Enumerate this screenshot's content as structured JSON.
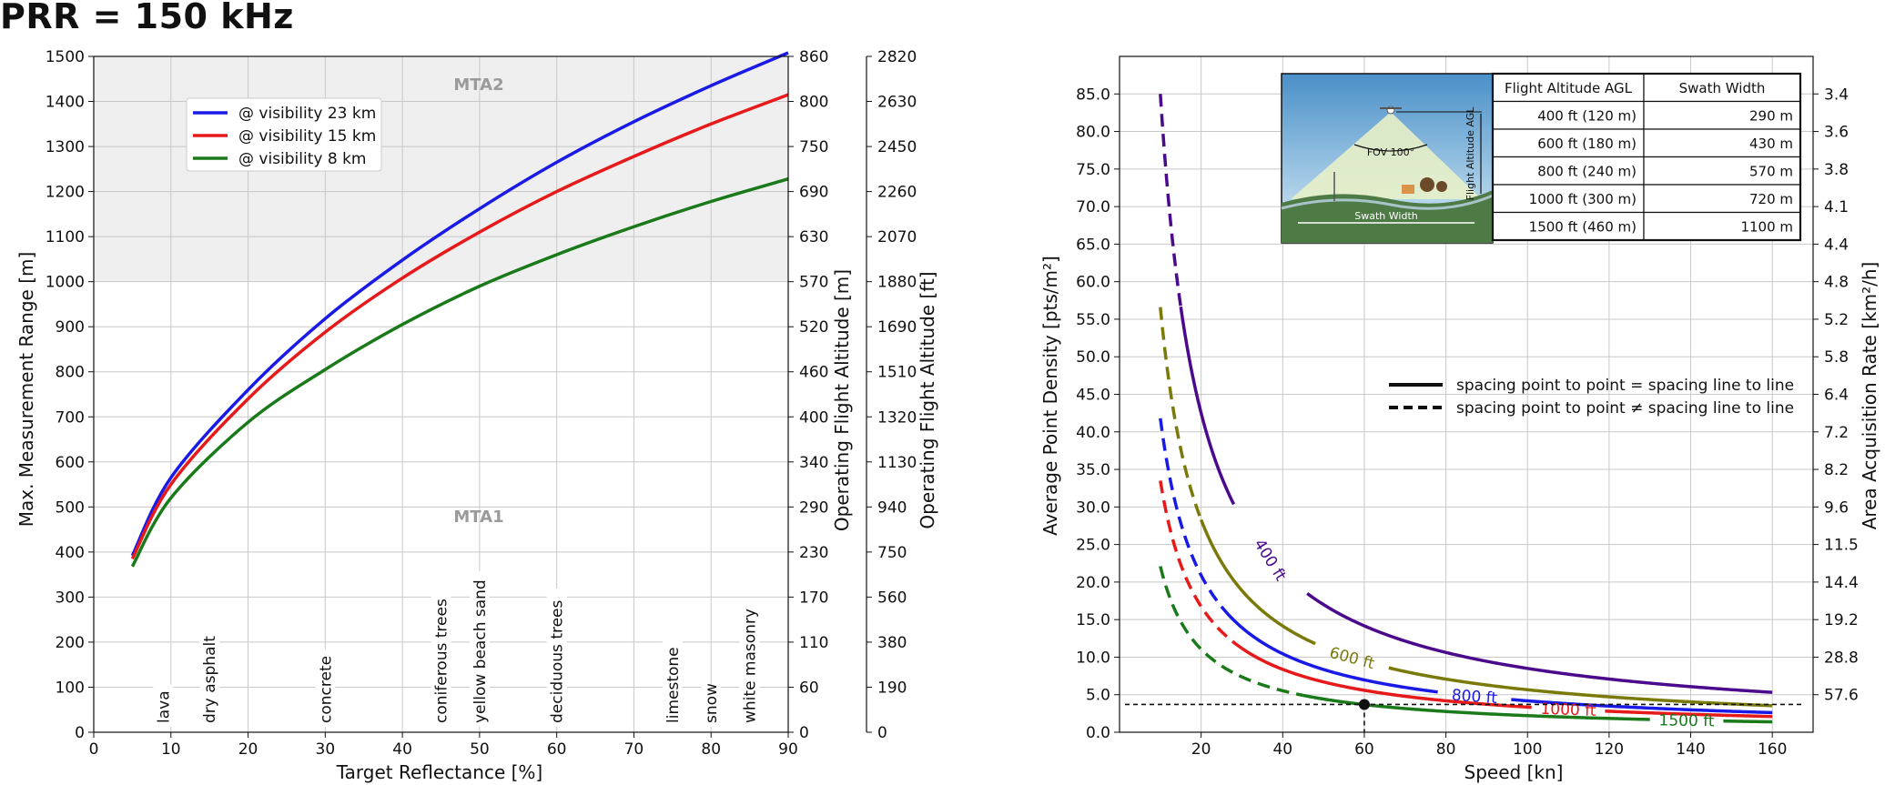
{
  "page_title": "PRR = 150 kHz",
  "chart_data": [
    {
      "type": "line",
      "xlabel": "Target Reflectance [%]",
      "ylabel": "Max. Measurement Range [m]",
      "ylabel_right1": "Operating Flight Altitude [m]",
      "ylabel_right2": "Operating Flight Altitude [ft]",
      "xlim": [
        0,
        90
      ],
      "ylim": [
        0,
        1500
      ],
      "xticks": [
        "0",
        "10",
        "20",
        "30",
        "40",
        "50",
        "60",
        "70",
        "80",
        "90"
      ],
      "yticks": [
        "0",
        "100",
        "200",
        "300",
        "400",
        "500",
        "600",
        "700",
        "800",
        "900",
        "1000",
        "1100",
        "1200",
        "1300",
        "1400",
        "1500"
      ],
      "right1_ticks": [
        "0",
        "60",
        "110",
        "170",
        "230",
        "290",
        "340",
        "400",
        "460",
        "520",
        "570",
        "630",
        "690",
        "750",
        "800",
        "860"
      ],
      "right2_ticks": [
        "0",
        "190",
        "380",
        "560",
        "750",
        "940",
        "1130",
        "1320",
        "1510",
        "1690",
        "1880",
        "2070",
        "2260",
        "2450",
        "2630",
        "2820"
      ],
      "zones": [
        {
          "label": "MTA2",
          "from": 1000,
          "to": 1500,
          "color": "#efefef"
        },
        {
          "label": "MTA1",
          "from": 0,
          "to": 1000
        }
      ],
      "series": [
        {
          "name": "@ visibility 23 km",
          "color": "#1a1ae6",
          "x": [
            5,
            10,
            20,
            30,
            40,
            50,
            60,
            70,
            80,
            90
          ],
          "values": [
            392,
            565,
            760,
            918,
            1048,
            1162,
            1265,
            1355,
            1435,
            1508
          ]
        },
        {
          "name": "@ visibility 15 km",
          "color": "#e61a1a",
          "x": [
            5,
            10,
            20,
            30,
            40,
            50,
            60,
            70,
            80,
            90
          ],
          "values": [
            385,
            550,
            740,
            888,
            1008,
            1110,
            1200,
            1278,
            1350,
            1415
          ]
        },
        {
          "name": "@ visibility 8 km",
          "color": "#1a7a1a",
          "x": [
            5,
            10,
            20,
            30,
            40,
            50,
            60,
            70,
            80,
            90
          ],
          "values": [
            368,
            520,
            688,
            805,
            905,
            990,
            1060,
            1122,
            1178,
            1228
          ]
        }
      ],
      "materials": [
        {
          "label": "lava",
          "x": 9
        },
        {
          "label": "dry asphalt",
          "x": 15
        },
        {
          "label": "concrete",
          "x": 30
        },
        {
          "label": "coniferous trees",
          "x": 45
        },
        {
          "label": "yellow beach sand",
          "x": 50
        },
        {
          "label": "deciduous trees",
          "x": 60
        },
        {
          "label": "limestone",
          "x": 75
        },
        {
          "label": "snow",
          "x": 80
        },
        {
          "label": "white masonry",
          "x": 85
        }
      ]
    },
    {
      "type": "line",
      "xlabel": "Speed [kn]",
      "ylabel": "Average Point Density [pts/m²]",
      "ylabel_right": "Area Acquisition Rate [km²/h]",
      "xlim": [
        0,
        170
      ],
      "ylim": [
        0,
        90
      ],
      "xticks": [
        "20",
        "40",
        "60",
        "80",
        "100",
        "120",
        "140",
        "160"
      ],
      "yticks": [
        "0.0",
        "5.0",
        "10.0",
        "15.0",
        "20.0",
        "25.0",
        "30.0",
        "35.0",
        "40.0",
        "45.0",
        "50.0",
        "55.0",
        "60.0",
        "65.0",
        "70.0",
        "75.0",
        "80.0",
        "85.0"
      ],
      "right_ticks": [
        "57.6",
        "28.8",
        "19.2",
        "14.4",
        "11.5",
        "9.6",
        "8.2",
        "7.2",
        "6.4",
        "5.8",
        "5.2",
        "4.8",
        "4.4",
        "4.1",
        "3.8",
        "3.6",
        "3.4"
      ],
      "legend": [
        "spacing point to point = spacing line to line",
        "spacing point to point ≠ spacing line to line"
      ],
      "series": [
        {
          "name": "400 ft",
          "color": "#4b0a8c",
          "k": 850,
          "solid_from": 15
        },
        {
          "name": "600 ft",
          "color": "#7a7a0a",
          "k": 566,
          "solid_from": 20
        },
        {
          "name": "800 ft",
          "color": "#1a1ae6",
          "k": 418,
          "solid_from": 25
        },
        {
          "name": "1000 ft",
          "color": "#e61a1a",
          "k": 335,
          "solid_from": 30
        },
        {
          "name": "1500 ft",
          "color": "#1a7a1a",
          "k": 221,
          "solid_from": 45
        }
      ],
      "marker": {
        "x": 60,
        "y": 3.7
      },
      "inset_labels": {
        "fov": "FOV 100°",
        "altitude": "Flight Altitude AGL",
        "swath": "Swath Width"
      },
      "table": {
        "headers": [
          "Flight Altitude AGL",
          "Swath Width"
        ],
        "rows": [
          [
            "400 ft (120 m)",
            "290 m"
          ],
          [
            "600 ft (180 m)",
            "430 m"
          ],
          [
            "800 ft (240 m)",
            "570 m"
          ],
          [
            "1000 ft (300 m)",
            "720 m"
          ],
          [
            "1500 ft (460 m)",
            "1100 m"
          ]
        ]
      }
    }
  ]
}
